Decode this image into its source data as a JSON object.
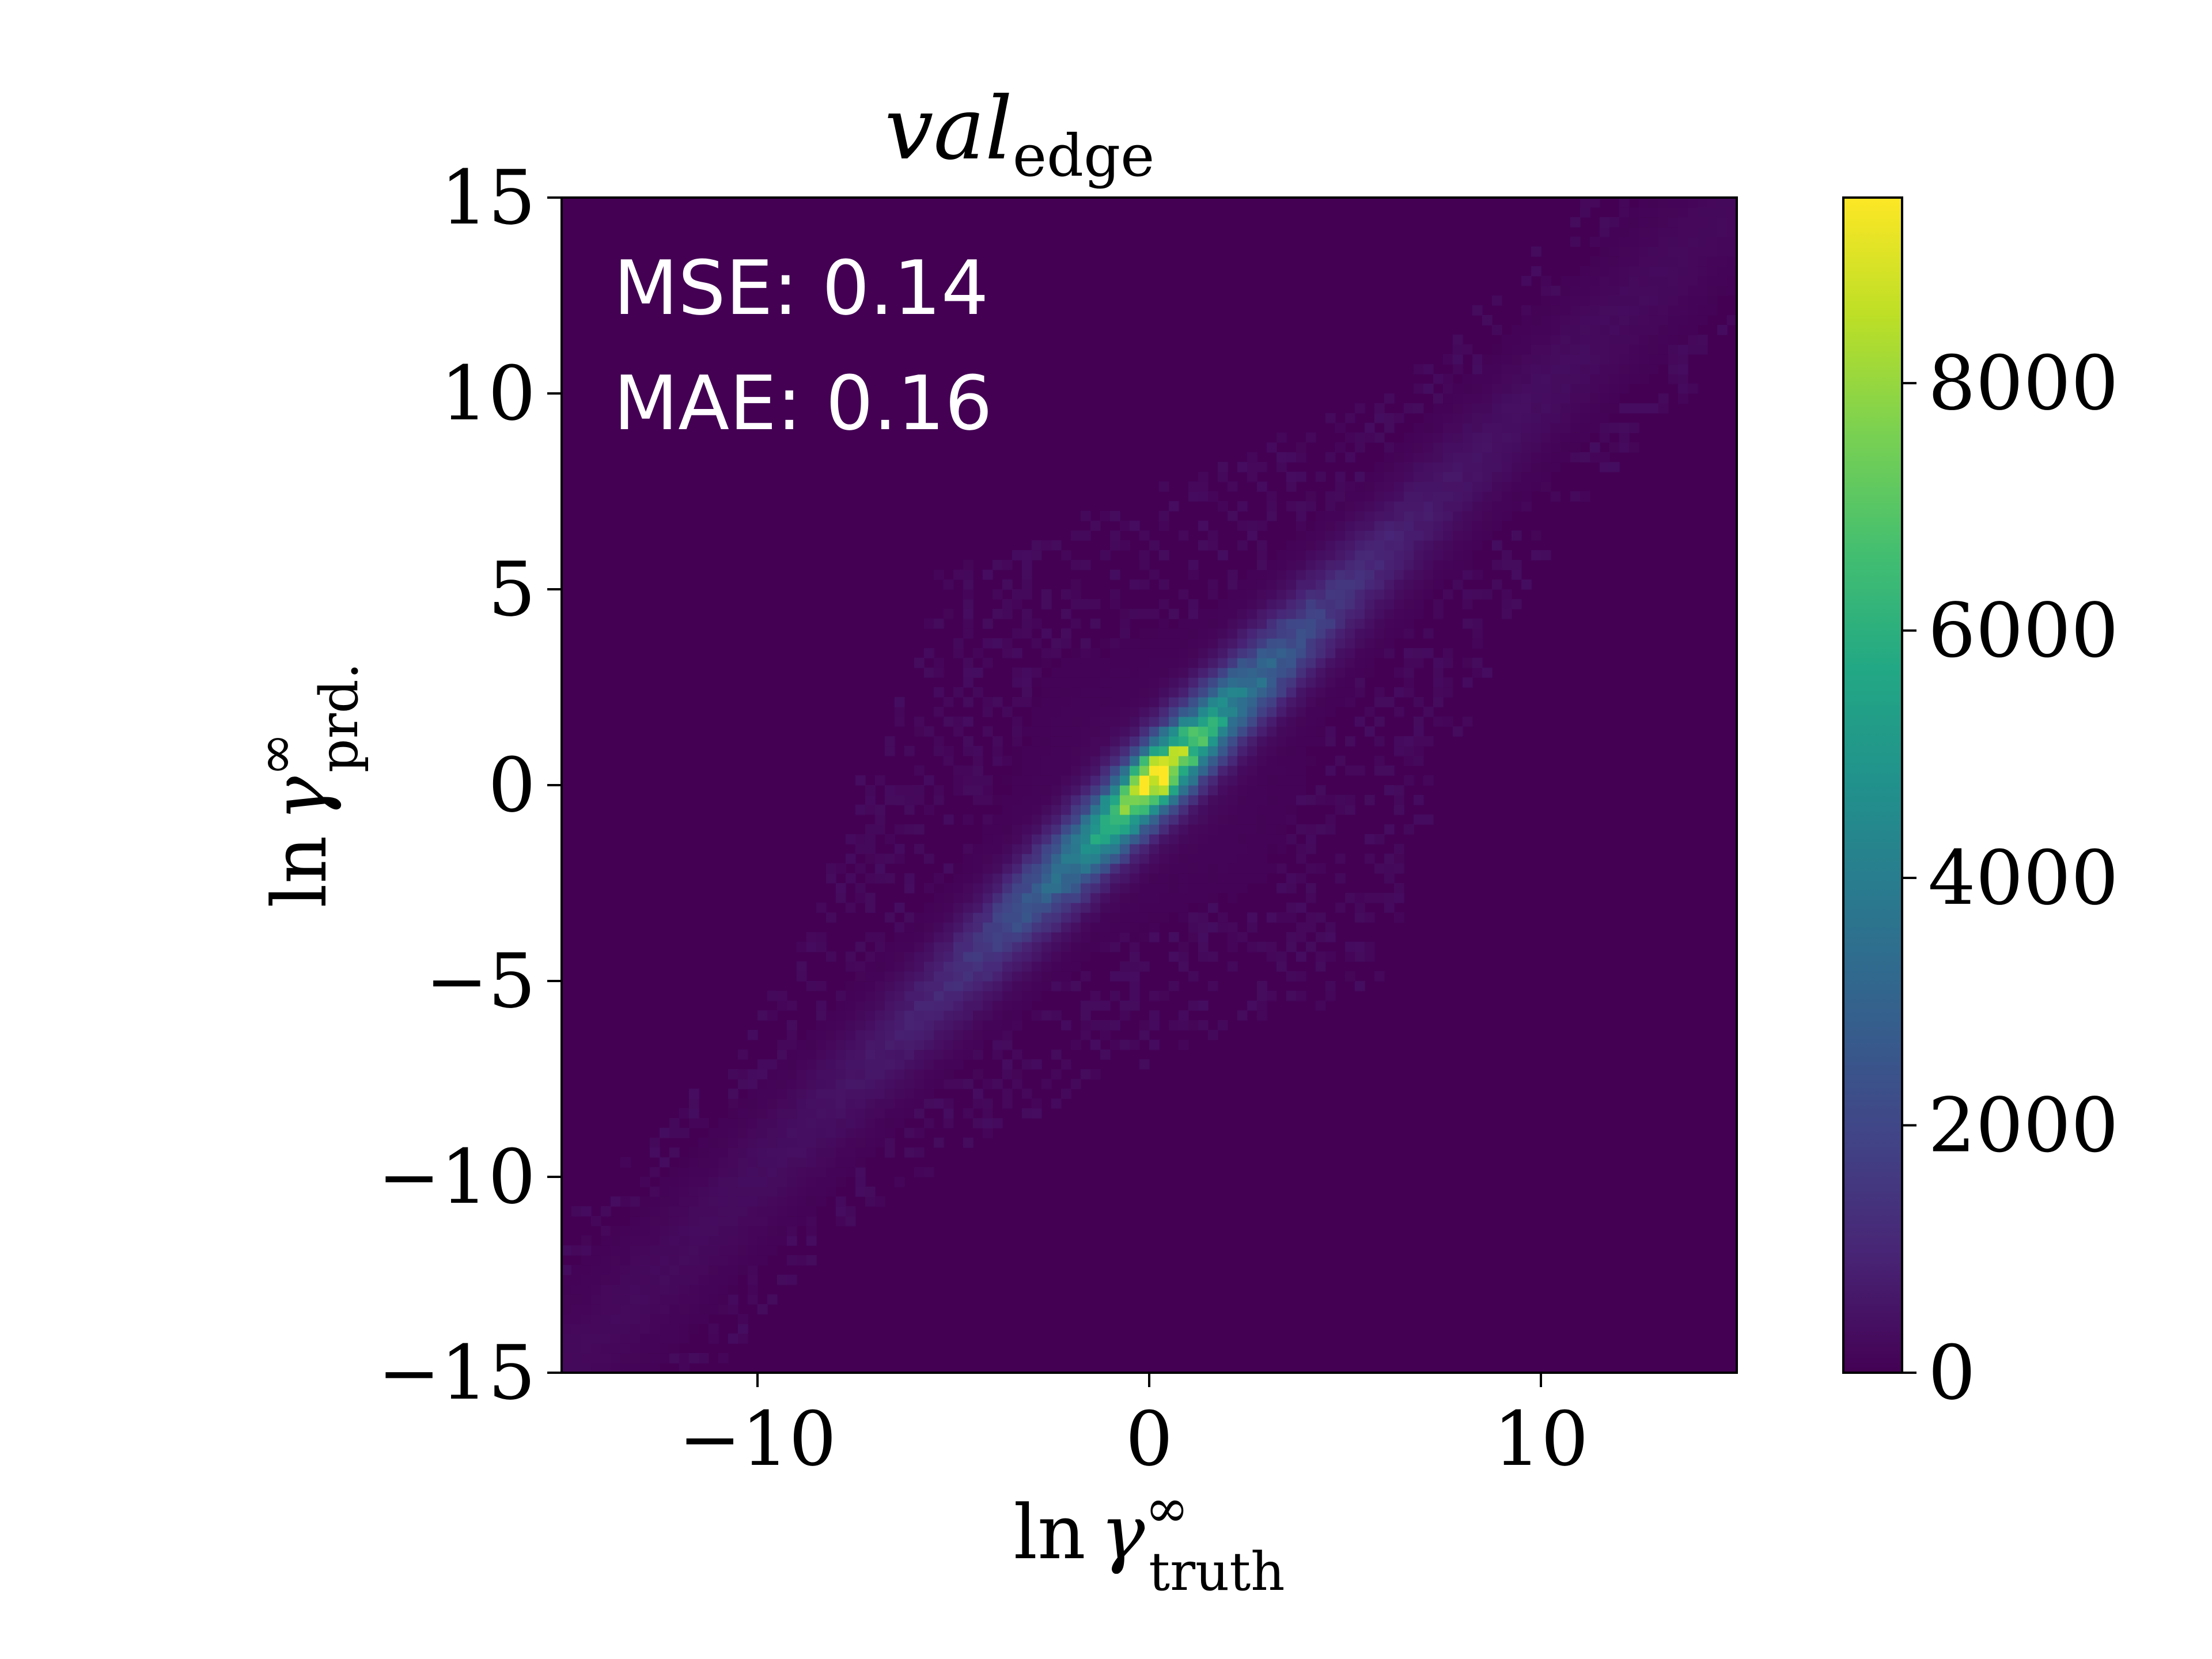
{
  "chart_data": {
    "type": "heatmap",
    "subtype": "2d-histogram",
    "title": {
      "main": "val",
      "subscript": "edge"
    },
    "xlabel": {
      "prefix": "ln",
      "symbol": "γ",
      "superscript": "∞",
      "subscript": "truth"
    },
    "ylabel": {
      "prefix": "ln",
      "symbol": "γ",
      "superscript": "∞",
      "subscript": "prd."
    },
    "xlim": [
      -15,
      15
    ],
    "ylim": [
      -15,
      15
    ],
    "x_ticks": [
      -10,
      0,
      10
    ],
    "x_tick_labels": [
      "−10",
      "0",
      "10"
    ],
    "y_ticks": [
      -15,
      -10,
      -5,
      0,
      5,
      10,
      15
    ],
    "y_tick_labels": [
      "−15",
      "−10",
      "−5",
      "0",
      "5",
      "10",
      "15"
    ],
    "bins": 120,
    "colormap": "viridis",
    "colorbar": {
      "min": 0,
      "max": 9500,
      "ticks": [
        0,
        2000,
        4000,
        6000,
        8000
      ],
      "tick_labels": [
        "0",
        "2000",
        "4000",
        "6000",
        "8000"
      ]
    },
    "distribution": {
      "center": [
        0.2,
        0.2
      ],
      "peak_count": 9500,
      "diagonal_scale": 3.2,
      "perpendicular_scale": 0.5,
      "diagonal_range": [
        -15,
        15
      ]
    },
    "annotations": [
      {
        "key": "mse",
        "text": "MSE: 0.14"
      },
      {
        "key": "mae",
        "text": "MAE: 0.16"
      }
    ],
    "grid": false
  }
}
